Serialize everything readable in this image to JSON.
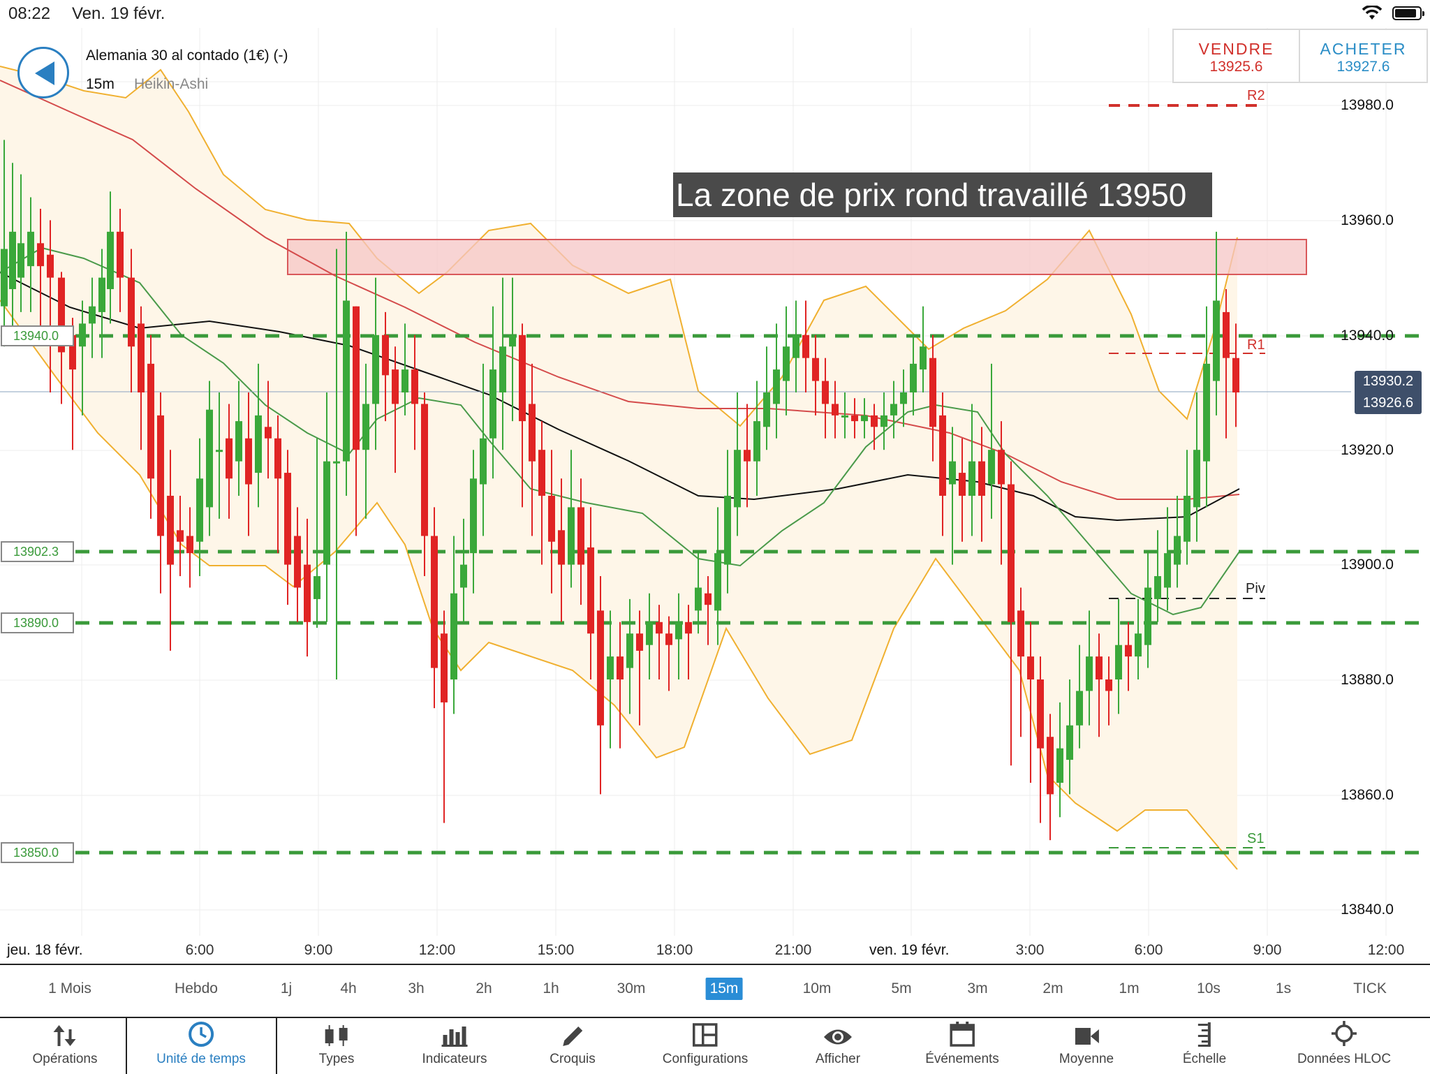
{
  "status": {
    "time": "08:22",
    "date": "Ven. 19 févr."
  },
  "header": {
    "instrument": "Alemania 30 al contado (1€) (-)",
    "interval": "15m",
    "chart_type": "Heikin-Ashi"
  },
  "trade": {
    "sell_label": "VENDRE",
    "sell_price": "13925.6",
    "buy_label": "ACHETER",
    "buy_price": "13927.6"
  },
  "annotation": "La zone de prix rond travaillé 13950",
  "price_axis": [
    "13980.0",
    "13960.0",
    "13940.0",
    "13920.0",
    "13900.0",
    "13880.0",
    "13860.0",
    "13840.0"
  ],
  "level_boxes": [
    "13940.0",
    "13902.3",
    "13890.0",
    "13850.0"
  ],
  "pivots": {
    "r2": "R2",
    "r1": "R1",
    "piv": "Piv",
    "s1": "S1"
  },
  "current_price": {
    "upper": "13930.2",
    "lower": "13926.6"
  },
  "time_axis": [
    "6:00",
    "9:00",
    "12:00",
    "15:00",
    "18:00",
    "21:00",
    "3:00",
    "6:00",
    "9:00",
    "12:00"
  ],
  "date_labels": [
    "jeu. 18 févr.",
    "ven. 19 févr."
  ],
  "intervals": [
    "1 Mois",
    "Hebdo",
    "1j",
    "4h",
    "3h",
    "2h",
    "1h",
    "30m",
    "15m",
    "10m",
    "5m",
    "3m",
    "2m",
    "1m",
    "10s",
    "1s",
    "TICK"
  ],
  "active_interval": "15m",
  "toolbar": [
    {
      "label": "Opérations",
      "icon": "arrows-updown-icon"
    },
    {
      "label": "Unité de temps",
      "icon": "clock-icon"
    },
    {
      "label": "Types",
      "icon": "candles-icon"
    },
    {
      "label": "Indicateurs",
      "icon": "bars-icon"
    },
    {
      "label": "Croquis",
      "icon": "pencil-icon"
    },
    {
      "label": "Configurations",
      "icon": "layout-icon"
    },
    {
      "label": "Afficher",
      "icon": "eye-icon"
    },
    {
      "label": "Événements",
      "icon": "calendar-icon"
    },
    {
      "label": "Moyenne",
      "icon": "camera-icon"
    },
    {
      "label": "Échelle",
      "icon": "scale-icon"
    },
    {
      "label": "Données HLOC",
      "icon": "crosshair-icon"
    }
  ],
  "colors": {
    "bull": "#3aa83a",
    "bear": "#e02424",
    "accent": "#2a8dd6",
    "band": "#f0b030",
    "level": "#3a9a3a",
    "zone": "#f5c6c6"
  }
}
